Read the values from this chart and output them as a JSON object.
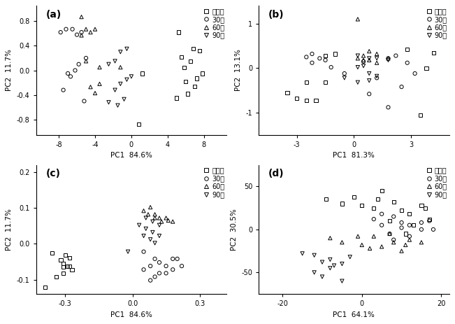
{
  "panels": [
    {
      "label": "(a)",
      "xlabel": "PC1  84.6%",
      "ylabel": "PC2  11.7%",
      "xlim": [
        -10.5,
        10.5
      ],
      "ylim": [
        -1.05,
        1.05
      ],
      "xticks": [
        -8,
        -4,
        0,
        4,
        8
      ],
      "yticks": [
        -0.8,
        -0.4,
        0.0,
        0.4,
        0.8
      ],
      "groups": {
        "对照组": {
          "marker": "s",
          "x": [
            5.2,
            6.5,
            7.8,
            5.5,
            7.2,
            6.0,
            7.5,
            6.8,
            7.0,
            5.8,
            5.0,
            6.2,
            0.8,
            1.2
          ],
          "y": [
            0.62,
            0.15,
            -0.05,
            0.22,
            -0.13,
            -0.18,
            0.32,
            0.35,
            -0.26,
            0.05,
            -0.45,
            -0.38,
            -0.88,
            -0.05
          ]
        },
        "30天": {
          "marker": "o",
          "x": [
            -7.8,
            -7.2,
            -6.5,
            -6.0,
            -5.5,
            -5.0,
            -5.8,
            -6.2,
            -7.0,
            -6.7,
            -7.5,
            -5.2
          ],
          "y": [
            0.62,
            0.67,
            0.67,
            0.58,
            0.62,
            0.2,
            0.1,
            0.0,
            -0.05,
            -0.1,
            -0.32,
            -0.5
          ]
        },
        "60天": {
          "marker": "^",
          "x": [
            -5.5,
            -5.0,
            -4.5,
            -5.5,
            -4.0,
            -5.0,
            -3.5,
            -1.2,
            -4.5,
            -4.0,
            -3.5
          ],
          "y": [
            0.87,
            0.67,
            0.62,
            0.57,
            0.67,
            0.15,
            0.05,
            0.05,
            -0.27,
            -0.37,
            -0.22
          ]
        },
        "90天": {
          "marker": "v",
          "x": [
            -0.5,
            -1.2,
            -1.8,
            -2.5,
            0.0,
            -0.5,
            -1.2,
            -1.8,
            -2.5,
            -0.8,
            -1.5
          ],
          "y": [
            0.35,
            0.3,
            0.15,
            0.1,
            -0.1,
            -0.15,
            -0.22,
            -0.32,
            -0.52,
            -0.47,
            -0.57
          ]
        }
      }
    },
    {
      "label": "(b)",
      "xlabel": "PC1  81.3%",
      "ylabel": "PC2  13.1%",
      "xlim": [
        -5.0,
        5.0
      ],
      "ylim": [
        -1.5,
        1.4
      ],
      "xticks": [
        -3,
        0,
        3
      ],
      "yticks": [
        -1,
        0,
        1
      ],
      "groups": {
        "对照组": {
          "marker": "s",
          "x": [
            -3.5,
            -3.0,
            -2.5,
            -2.0,
            -1.5,
            -2.5,
            3.5,
            4.2,
            2.8,
            -1.0,
            -1.5,
            3.8
          ],
          "y": [
            -0.55,
            -0.68,
            -0.32,
            -0.72,
            -0.32,
            -0.72,
            -1.05,
            0.35,
            0.42,
            0.32,
            0.28,
            0.0
          ]
        },
        "30天": {
          "marker": "o",
          "x": [
            -2.5,
            -2.2,
            -1.8,
            -1.5,
            -2.2,
            -1.2,
            1.8,
            2.2,
            2.8,
            3.2,
            1.2,
            0.8,
            1.8,
            -0.5,
            2.5,
            0.5
          ],
          "y": [
            0.25,
            0.32,
            0.22,
            0.18,
            0.12,
            0.02,
            0.22,
            0.28,
            0.12,
            -0.12,
            -0.22,
            -0.58,
            -0.88,
            -0.12,
            -0.42,
            0.15
          ]
        },
        "60天": {
          "marker": "^",
          "x": [
            0.2,
            0.8,
            1.2,
            0.5,
            1.8,
            0.2,
            0.8,
            1.2,
            0.5
          ],
          "y": [
            1.1,
            0.38,
            0.32,
            0.28,
            0.22,
            0.22,
            0.18,
            0.12,
            0.18
          ]
        },
        "90天": {
          "marker": "v",
          "x": [
            0.2,
            0.8,
            1.2,
            1.8,
            0.2,
            0.8,
            1.2,
            -0.5,
            0.2,
            0.8,
            0.5
          ],
          "y": [
            0.28,
            0.22,
            0.22,
            0.18,
            0.02,
            -0.12,
            -0.18,
            -0.22,
            -0.32,
            -0.28,
            0.05
          ]
        }
      }
    },
    {
      "label": "(c)",
      "xlabel": "PC1  84.6%",
      "ylabel": "PC2  11.7%",
      "xlim": [
        -0.43,
        0.42
      ],
      "ylim": [
        -0.14,
        0.22
      ],
      "xticks": [
        -0.3,
        0.0,
        0.3
      ],
      "yticks": [
        -0.1,
        0.0,
        0.1,
        0.2
      ],
      "groups": {
        "对照组": {
          "marker": "s",
          "x": [
            -0.36,
            -0.3,
            -0.28,
            -0.32,
            -0.31,
            -0.28,
            -0.31,
            -0.27,
            -0.29,
            -0.31,
            -0.34,
            -0.39
          ],
          "y": [
            -0.025,
            -0.032,
            -0.04,
            -0.045,
            -0.055,
            -0.062,
            -0.065,
            -0.072,
            -0.062,
            -0.082,
            -0.092,
            -0.122
          ]
        },
        "30天": {
          "marker": "o",
          "x": [
            0.05,
            0.08,
            0.1,
            0.12,
            0.15,
            0.18,
            0.2,
            0.22,
            0.15,
            0.1,
            0.08,
            0.05,
            0.12,
            0.18
          ],
          "y": [
            -0.022,
            -0.062,
            -0.042,
            -0.052,
            -0.062,
            -0.072,
            -0.042,
            -0.062,
            -0.082,
            -0.092,
            -0.102,
            -0.072,
            -0.082,
            -0.042
          ]
        },
        "60天": {
          "marker": "^",
          "x": [
            0.05,
            0.08,
            0.1,
            0.12,
            0.15,
            0.18,
            0.1,
            0.13,
            0.07,
            0.16
          ],
          "y": [
            0.092,
            0.102,
            0.082,
            0.072,
            0.072,
            0.062,
            0.072,
            0.062,
            0.082,
            0.065
          ]
        },
        "90天": {
          "marker": "v",
          "x": [
            0.03,
            0.06,
            0.09,
            0.12,
            0.06,
            0.09,
            0.12,
            0.05,
            0.08,
            0.1,
            -0.02
          ],
          "y": [
            0.052,
            0.072,
            0.062,
            0.052,
            0.042,
            0.032,
            0.022,
            0.022,
            0.012,
            0.002,
            -0.022
          ]
        }
      }
    },
    {
      "label": "(d)",
      "xlabel": "PC1  64.1%",
      "ylabel": "PC2  30.5%",
      "xlim": [
        -26,
        22
      ],
      "ylim": [
        -75,
        75
      ],
      "xticks": [
        -20,
        0,
        20
      ],
      "yticks": [
        -50,
        0,
        50
      ],
      "groups": {
        "对照组": {
          "marker": "s",
          "x": [
            -9,
            -5,
            -2,
            0,
            3,
            5,
            8,
            10,
            12,
            15,
            17,
            7,
            13,
            16,
            4,
            11
          ],
          "y": [
            35,
            30,
            38,
            28,
            25,
            45,
            32,
            22,
            18,
            28,
            12,
            10,
            5,
            25,
            35,
            -5
          ]
        },
        "30天": {
          "marker": "o",
          "x": [
            3,
            5,
            8,
            10,
            12,
            15,
            7,
            12,
            17,
            5,
            10,
            15,
            18,
            8
          ],
          "y": [
            12,
            18,
            15,
            8,
            5,
            0,
            -5,
            -8,
            10,
            5,
            2,
            8,
            0,
            -12
          ]
        },
        "60天": {
          "marker": "^",
          "x": [
            -8,
            -5,
            -1,
            0,
            2,
            5,
            8,
            10,
            12,
            15,
            3,
            7,
            11
          ],
          "y": [
            -10,
            -15,
            -8,
            -18,
            -22,
            -20,
            -15,
            -25,
            -12,
            -15,
            -8,
            -5,
            -18
          ]
        },
        "90天": {
          "marker": "v",
          "x": [
            -12,
            -10,
            -8,
            -5,
            -3,
            -8,
            -12,
            -10,
            -7,
            -15,
            -5
          ],
          "y": [
            -30,
            -38,
            -35,
            -40,
            -32,
            -45,
            -50,
            -55,
            -42,
            -28,
            -60
          ]
        }
      }
    }
  ],
  "legend_labels": [
    "对照组",
    "30天",
    "60天",
    "90天"
  ],
  "legend_labels_display": [
    "对照组",
    "30天",
    "60天",
    "90天"
  ],
  "markers": [
    "s",
    "o",
    "^",
    "v"
  ],
  "markersize": 14,
  "linewidth": 0.7,
  "fontsize_label": 7.5,
  "fontsize_tick": 7,
  "fontsize_legend": 7,
  "fontsize_panel": 10
}
